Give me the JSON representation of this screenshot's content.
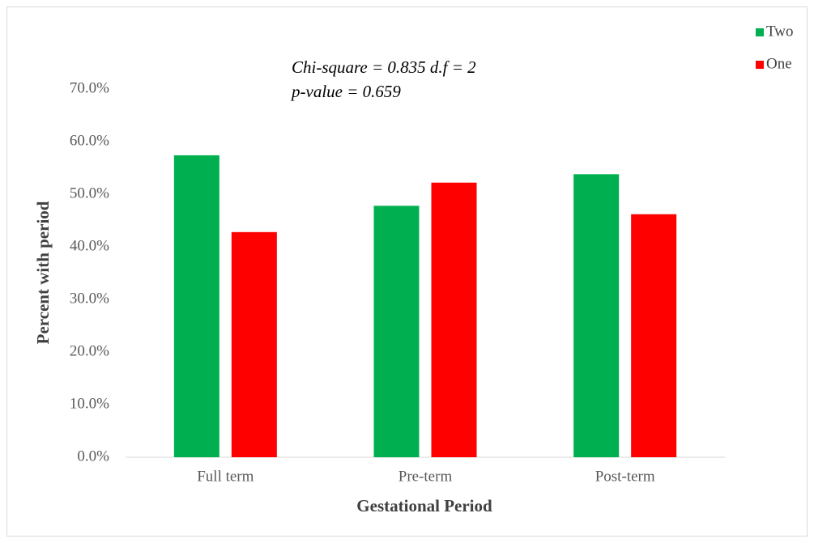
{
  "chart_data": {
    "type": "bar",
    "annotations": [
      "Chi-square = 0.835  d.f = 2",
      "p-value = 0.659"
    ],
    "x_label": "Gestational Period",
    "y_label": "Percent with period",
    "categories": [
      "Full term",
      "Pre-term",
      "Post-term"
    ],
    "series": [
      {
        "name": "Two",
        "color": "#00b050",
        "values": [
          57.4,
          47.8,
          53.8
        ]
      },
      {
        "name": "One",
        "color": "#ff0000",
        "values": [
          42.8,
          52.2,
          46.2
        ]
      }
    ],
    "ylim": [
      0,
      70
    ],
    "yticks": [
      {
        "value": 0,
        "label": "0.0%"
      },
      {
        "value": 10,
        "label": "10.0%"
      },
      {
        "value": 20,
        "label": "20.0%"
      },
      {
        "value": 30,
        "label": "30.0%"
      },
      {
        "value": 40,
        "label": "40.0%"
      },
      {
        "value": 50,
        "label": "50.0%"
      },
      {
        "value": 60,
        "label": "60.0%"
      },
      {
        "value": 70,
        "label": "70.0%"
      }
    ],
    "grid": false,
    "legend": "top-right"
  }
}
